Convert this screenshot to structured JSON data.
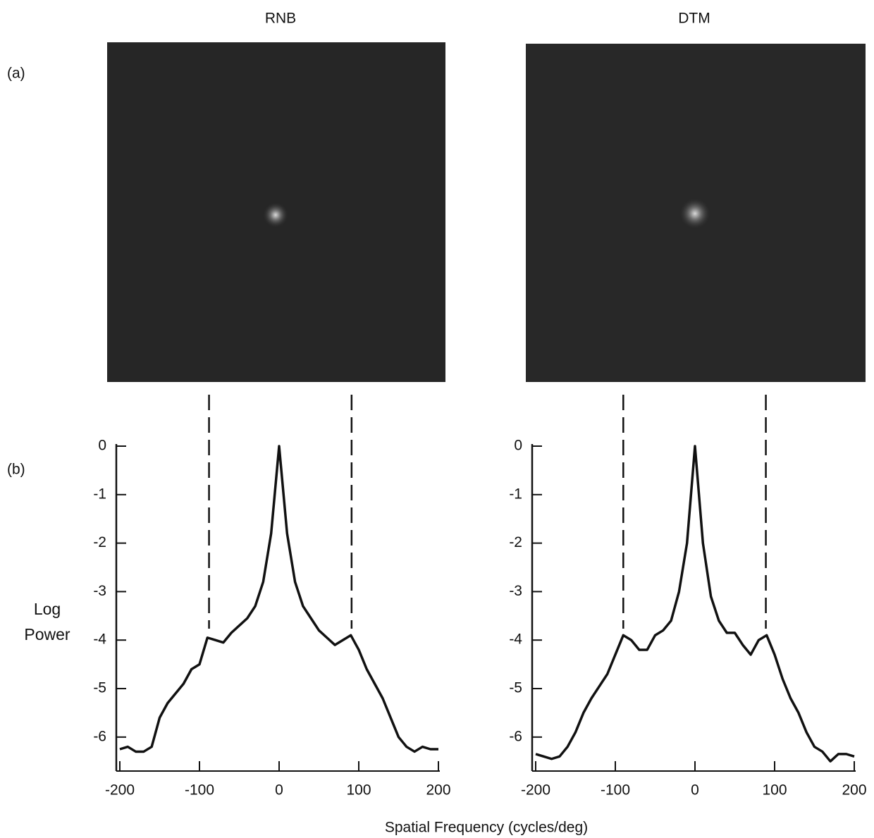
{
  "panel_labels": [
    "(a)",
    "(b)"
  ],
  "ylabel": "Log Power",
  "xlabel": "Spatial Frequency (cycles/deg)",
  "chart_data": [
    {
      "type": "line",
      "title": "RNB",
      "x": [
        -200,
        -190,
        -180,
        -170,
        -160,
        -150,
        -140,
        -130,
        -120,
        -110,
        -100,
        -90,
        -80,
        -70,
        -60,
        -50,
        -40,
        -30,
        -20,
        -10,
        0,
        10,
        20,
        30,
        40,
        50,
        60,
        70,
        80,
        90,
        100,
        110,
        120,
        130,
        140,
        150,
        160,
        170,
        180,
        190,
        200
      ],
      "values": [
        -6.25,
        -6.2,
        -6.3,
        -6.3,
        -6.2,
        -5.6,
        -5.3,
        -5.1,
        -4.9,
        -4.6,
        -4.5,
        -3.95,
        -4.0,
        -4.05,
        -3.85,
        -3.7,
        -3.55,
        -3.3,
        -2.8,
        -1.8,
        0,
        -1.8,
        -2.8,
        -3.3,
        -3.55,
        -3.8,
        -3.95,
        -4.1,
        -4.0,
        -3.9,
        -4.2,
        -4.6,
        -4.9,
        -5.2,
        -5.6,
        -6.0,
        -6.2,
        -6.3,
        -6.2,
        -6.25,
        -6.25
      ],
      "color": "#111111",
      "markers": [
        -88,
        91
      ],
      "xlim": [
        -200,
        200
      ],
      "xticks": [
        -200,
        -100,
        0,
        100,
        200
      ],
      "ylim": [
        -6.7,
        0
      ],
      "yticks": [
        0,
        -1,
        -2,
        -3,
        -4,
        -5,
        -6
      ]
    },
    {
      "type": "line",
      "title": "DTM",
      "x": [
        -200,
        -190,
        -180,
        -170,
        -160,
        -150,
        -140,
        -130,
        -120,
        -110,
        -100,
        -90,
        -80,
        -70,
        -60,
        -50,
        -40,
        -30,
        -20,
        -10,
        0,
        10,
        20,
        30,
        40,
        50,
        60,
        70,
        80,
        90,
        100,
        110,
        120,
        130,
        140,
        150,
        160,
        170,
        180,
        190,
        200
      ],
      "values": [
        -6.35,
        -6.4,
        -6.45,
        -6.4,
        -6.2,
        -5.9,
        -5.5,
        -5.2,
        -4.95,
        -4.7,
        -4.3,
        -3.9,
        -4.0,
        -4.2,
        -4.2,
        -3.9,
        -3.8,
        -3.6,
        -3.0,
        -2.0,
        0,
        -2.0,
        -3.1,
        -3.6,
        -3.85,
        -3.85,
        -4.1,
        -4.3,
        -4.0,
        -3.9,
        -4.3,
        -4.8,
        -5.2,
        -5.5,
        -5.9,
        -6.2,
        -6.3,
        -6.5,
        -6.35,
        -6.35,
        -6.4
      ],
      "color": "#111111",
      "markers": [
        -90,
        89
      ],
      "xlim": [
        -200,
        200
      ],
      "xticks": [
        -200,
        -100,
        0,
        100,
        200
      ],
      "ylim": [
        -6.7,
        0
      ],
      "yticks": [
        0,
        -1,
        -2,
        -3,
        -4,
        -5,
        -6
      ]
    }
  ]
}
